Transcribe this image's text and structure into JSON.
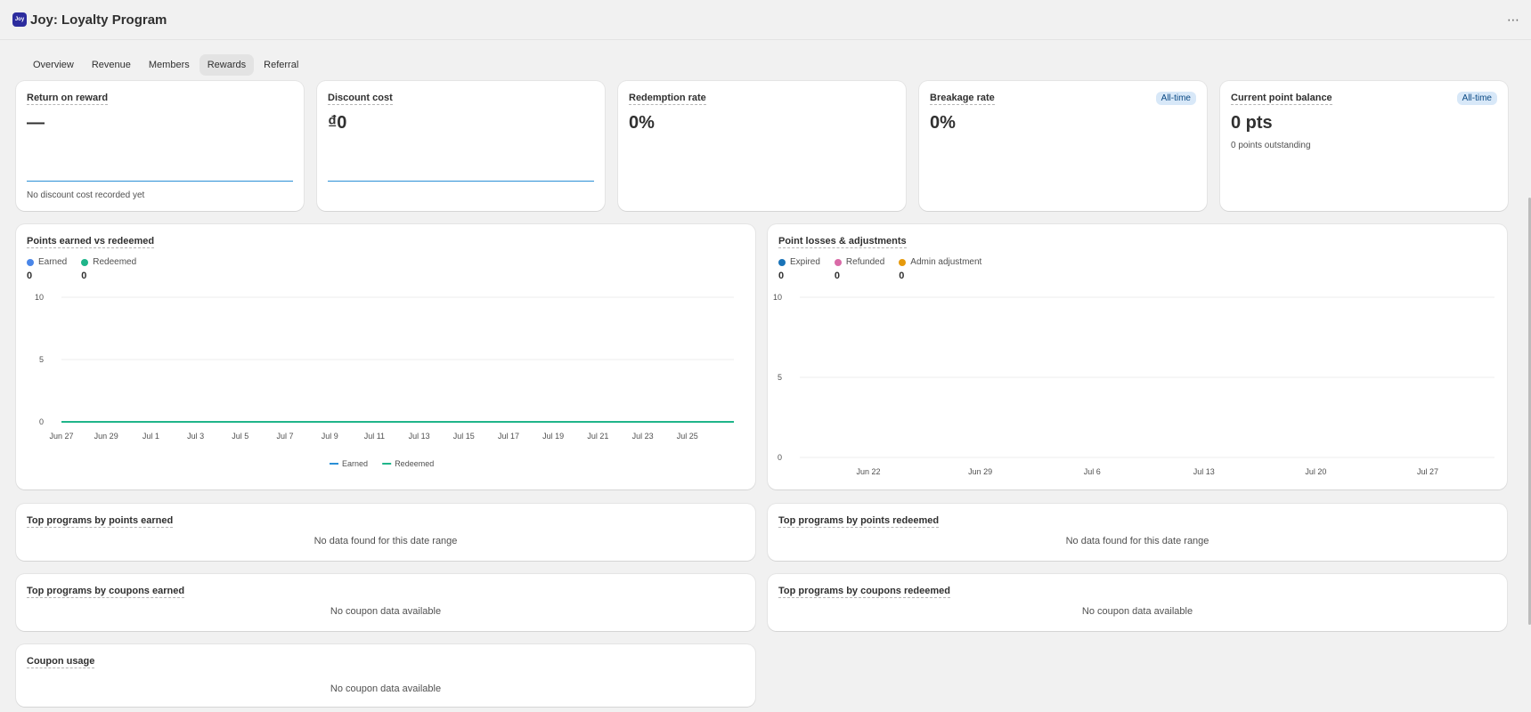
{
  "app": {
    "logo_text": "Joy",
    "title": "Joy: Loyalty Program",
    "more_label": "⋯"
  },
  "tabs": [
    {
      "label": "Overview"
    },
    {
      "label": "Revenue"
    },
    {
      "label": "Members"
    },
    {
      "label": "Rewards",
      "active": true
    },
    {
      "label": "Referral"
    }
  ],
  "metrics": {
    "return_on_reward": {
      "title": "Return on reward",
      "value": "—",
      "note": "No discount cost recorded yet"
    },
    "discount_cost": {
      "title": "Discount cost",
      "value": "₫0"
    },
    "redemption_rate": {
      "title": "Redemption rate",
      "value": "0%"
    },
    "breakage_rate": {
      "title": "Breakage rate",
      "value": "0%",
      "badge": "All-time"
    },
    "point_balance": {
      "title": "Current point balance",
      "value": "0 pts",
      "sub": "0 points outstanding",
      "badge": "All-time"
    }
  },
  "earned_vs_redeemed": {
    "title": "Points earned vs redeemed",
    "legend": [
      {
        "label": "Earned",
        "value": "0",
        "color": "#4a86e8"
      },
      {
        "label": "Redeemed",
        "value": "0",
        "color": "#1fb58a"
      }
    ],
    "bottom_legend": [
      "Earned",
      "Redeemed"
    ]
  },
  "losses": {
    "title": "Point losses & adjustments",
    "legend": [
      {
        "label": "Expired",
        "value": "0",
        "color": "#1a73b8"
      },
      {
        "label": "Refunded",
        "value": "0",
        "color": "#d96aa7"
      },
      {
        "label": "Admin adjustment",
        "value": "0",
        "color": "#e69a0c"
      }
    ]
  },
  "chart_data": [
    {
      "type": "line",
      "x": [
        "Jun 27",
        "Jun 29",
        "Jul 1",
        "Jul 3",
        "Jul 5",
        "Jul 7",
        "Jul 9",
        "Jul 11",
        "Jul 13",
        "Jul 15",
        "Jul 17",
        "Jul 19",
        "Jul 21",
        "Jul 23",
        "Jul 25"
      ],
      "series": [
        {
          "name": "Earned",
          "values": [
            0,
            0,
            0,
            0,
            0,
            0,
            0,
            0,
            0,
            0,
            0,
            0,
            0,
            0,
            0
          ]
        },
        {
          "name": "Redeemed",
          "values": [
            0,
            0,
            0,
            0,
            0,
            0,
            0,
            0,
            0,
            0,
            0,
            0,
            0,
            0,
            0
          ]
        }
      ],
      "yticks": [
        0,
        5,
        10
      ],
      "ylim": [
        0,
        10
      ],
      "legend": "bottom"
    },
    {
      "type": "line",
      "x": [
        "Jun 22",
        "Jun 29",
        "Jul 6",
        "Jul 13",
        "Jul 20",
        "Jul 27"
      ],
      "series": [],
      "yticks": [
        0,
        5,
        10
      ],
      "ylim": [
        0,
        10
      ]
    }
  ],
  "tables": {
    "points_earned": {
      "title": "Top programs by points earned",
      "empty": "No data found for this date range"
    },
    "points_redeemed": {
      "title": "Top programs by points redeemed",
      "empty": "No data found for this date range"
    },
    "coupons_earned": {
      "title": "Top programs by coupons earned",
      "empty": "No coupon data available"
    },
    "coupons_redeemed": {
      "title": "Top programs by coupons redeemed",
      "empty": "No coupon data available"
    },
    "coupon_usage": {
      "title": "Coupon usage",
      "empty": "No coupon data available"
    }
  }
}
